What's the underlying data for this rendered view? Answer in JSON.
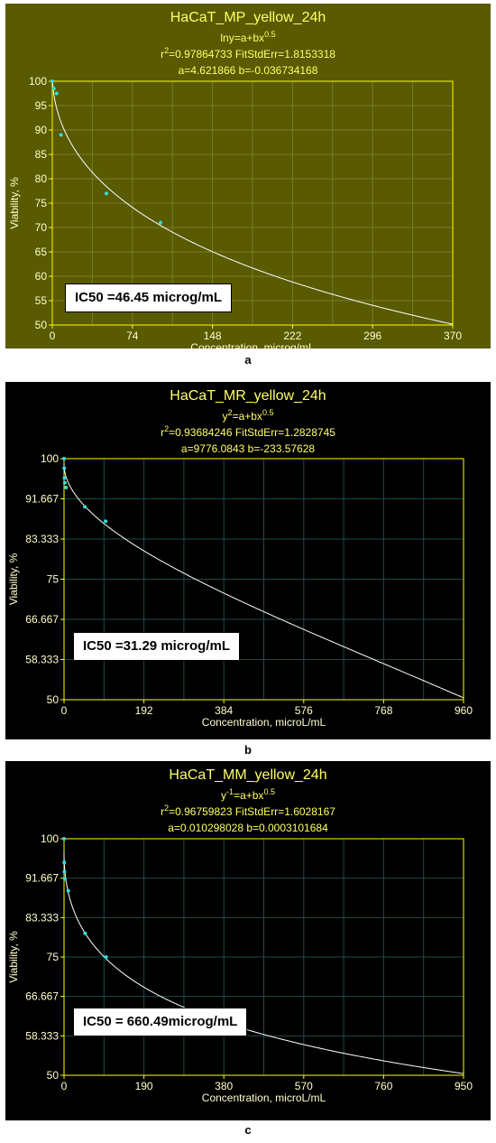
{
  "colors": {
    "bg_outer_a": "#5a5a00",
    "bg_outer_bc": "#000000",
    "plot_bg_a": "#5a5a00",
    "plot_bg_bc": "#000000",
    "title_color": "#ffff66",
    "text_yellow": "#ffff66",
    "axis_text_a": "#ffffcc",
    "axis_text_bc": "#ffffcc",
    "grid_a": "#7a7a30",
    "grid_bc": "#1e4a4a",
    "curve": "#ffffff",
    "points": "#33dddd",
    "axes_frame": "#ffff00"
  },
  "chart_data": [
    {
      "type": "scatter",
      "panel_label": "a",
      "title": "HaCaT_MP_yellow_24h",
      "equation_main": "lny=a+bx",
      "equation_sup": "0.5",
      "stats_line_r2_sup": "2",
      "stats_r2_value": "=0.97864733",
      "stats_fitstderr": "FitStdErr=1.8153318",
      "param_a": "a=4.621866",
      "param_b": "b=-0.036734168",
      "xlabel": "Concentration, microg/mL",
      "ylabel": "Viability, %",
      "xlim": [
        0,
        370
      ],
      "ylim": [
        50,
        100
      ],
      "xticks": [
        "0",
        "74",
        "148",
        "222",
        "296",
        "370"
      ],
      "yticks": [
        "50",
        "55",
        "60",
        "65",
        "70",
        "75",
        "80",
        "85",
        "90",
        "95",
        "100"
      ],
      "grid": true,
      "model": "lny",
      "a": 4.621866,
      "b": -0.036734168,
      "points": [
        {
          "x": 0,
          "y": 100
        },
        {
          "x": 1.5,
          "y": 98.5
        },
        {
          "x": 4,
          "y": 97.5
        },
        {
          "x": 8,
          "y": 89
        },
        {
          "x": 50,
          "y": 77
        },
        {
          "x": 100,
          "y": 71
        }
      ],
      "ic50_label": "IC50 =46.45 microg/mL"
    },
    {
      "type": "scatter",
      "panel_label": "b",
      "title": "HaCaT_MR_yellow_24h",
      "equation_main": "y",
      "equation_sup_1": "2",
      "equation_rest": "=a+bx",
      "equation_sup": "0.5",
      "stats_line_r2_sup": "2",
      "stats_r2_value": "=0.93684246",
      "stats_fitstderr": "FitStdErr=1.2828745",
      "param_a": "a=9776.0843",
      "param_b": "b=-233.57628",
      "xlabel": "Concentration, microL/mL",
      "ylabel": "Viability, %",
      "xlim": [
        0,
        960
      ],
      "ylim": [
        50,
        100
      ],
      "xticks": [
        "0",
        "192",
        "384",
        "576",
        "768",
        "960"
      ],
      "yticks": [
        "50",
        "58.333",
        "66.667",
        "75",
        "83.333",
        "91.667",
        "100"
      ],
      "grid": true,
      "model": "y2",
      "a": 9776.0843,
      "b": -233.57628,
      "points": [
        {
          "x": 0,
          "y": 100
        },
        {
          "x": 0.5,
          "y": 98
        },
        {
          "x": 1,
          "y": 96
        },
        {
          "x": 2,
          "y": 95
        },
        {
          "x": 5,
          "y": 94
        },
        {
          "x": 50,
          "y": 90
        },
        {
          "x": 100,
          "y": 87
        }
      ],
      "ic50_label": "IC50 =31.29 microg/mL"
    },
    {
      "type": "scatter",
      "panel_label": "c",
      "title": "HaCaT_MM_yellow_24h",
      "equation_main": "y",
      "equation_sup_1": "-1",
      "equation_rest": "=a+bx",
      "equation_sup": "0.5",
      "stats_line_r2_sup": "2",
      "stats_r2_value": "=0.96759823",
      "stats_fitstderr": "FitStdErr=1.6028167",
      "param_a": "a=0.010298028",
      "param_b": "b=0.0003101684",
      "xlabel": "Concentration, microL/mL",
      "ylabel": "Viability, %",
      "xlim": [
        0,
        950
      ],
      "ylim": [
        50,
        100
      ],
      "xticks": [
        "0",
        "190",
        "380",
        "570",
        "760",
        "950"
      ],
      "yticks": [
        "50",
        "58.333",
        "66.667",
        "75",
        "83.333",
        "91.667",
        "100"
      ],
      "grid": true,
      "model": "yinv",
      "a": 0.010298028,
      "b": 0.0003101684,
      "points": [
        {
          "x": 0,
          "y": 100
        },
        {
          "x": 0.5,
          "y": 95
        },
        {
          "x": 1,
          "y": 93
        },
        {
          "x": 2,
          "y": 91.5
        },
        {
          "x": 10,
          "y": 89
        },
        {
          "x": 50,
          "y": 80
        },
        {
          "x": 100,
          "y": 75
        }
      ],
      "ic50_label": "IC50 = 660.49microg/mL"
    }
  ]
}
